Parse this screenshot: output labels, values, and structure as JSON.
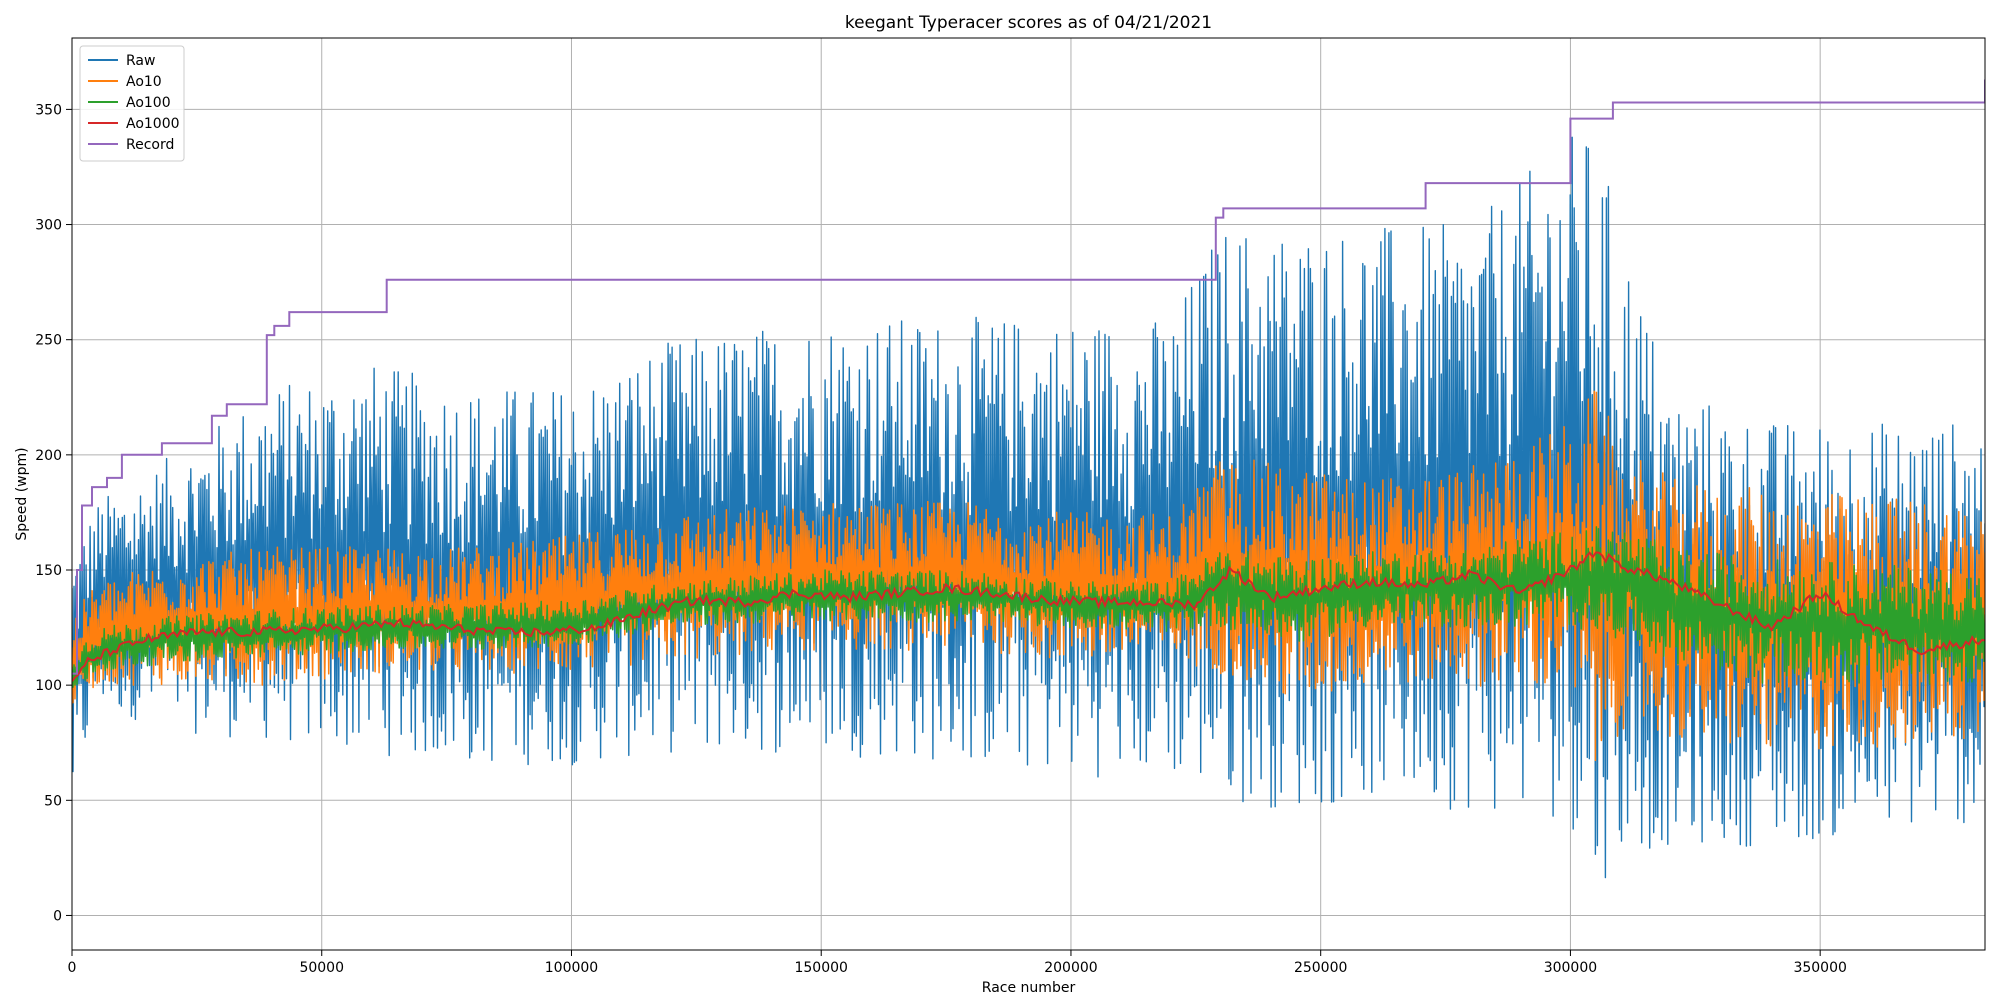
{
  "chart_data": {
    "type": "line",
    "title": "keegant Typeracer scores as of 04/21/2021",
    "xlabel": "Race number",
    "ylabel": "Speed (wpm)",
    "xlim": [
      0,
      383000
    ],
    "ylim": [
      -15,
      381
    ],
    "x_ticks": [
      0,
      50000,
      100000,
      150000,
      200000,
      250000,
      300000,
      350000
    ],
    "x_tick_labels": [
      "0",
      "50000",
      "100000",
      "150000",
      "200000",
      "250000",
      "300000",
      "350000"
    ],
    "y_ticks": [
      0,
      50,
      100,
      150,
      200,
      250,
      300,
      350
    ],
    "y_tick_labels": [
      "0",
      "50",
      "100",
      "150",
      "200",
      "250",
      "300",
      "350"
    ],
    "grid": true,
    "legend_position": "upper-left",
    "series": [
      {
        "name": "Raw",
        "color": "#1f77b4",
        "style": "noisy band",
        "x": [
          0,
          5000,
          20000,
          40000,
          60000,
          80000,
          100000,
          120000,
          150000,
          180000,
          200000,
          220000,
          230000,
          245000,
          260000,
          280000,
          300000,
          305000,
          310000,
          320000,
          340000,
          383000
        ],
        "lower": [
          45,
          90,
          80,
          75,
          70,
          65,
          65,
          70,
          70,
          65,
          60,
          60,
          50,
          45,
          50,
          45,
          40,
          10,
          25,
          30,
          30,
          40
        ],
        "upper": [
          160,
          180,
          200,
          230,
          240,
          230,
          230,
          250,
          260,
          260,
          260,
          260,
          300,
          300,
          300,
          300,
          340,
          340,
          300,
          230,
          215,
          215
        ]
      },
      {
        "name": "Ao10",
        "color": "#ff7f0e",
        "style": "noisy band",
        "x": [
          0,
          5000,
          20000,
          40000,
          60000,
          80000,
          100000,
          120000,
          150000,
          180000,
          200000,
          220000,
          230000,
          245000,
          260000,
          280000,
          300000,
          305000,
          310000,
          320000,
          340000,
          383000
        ],
        "lower": [
          90,
          100,
          100,
          100,
          105,
          105,
          105,
          110,
          115,
          115,
          110,
          110,
          105,
          90,
          100,
          100,
          95,
          60,
          80,
          75,
          70,
          75
        ],
        "upper": [
          130,
          145,
          155,
          160,
          160,
          160,
          165,
          175,
          180,
          180,
          175,
          175,
          200,
          195,
          190,
          195,
          215,
          230,
          205,
          190,
          185,
          180
        ]
      },
      {
        "name": "Ao100",
        "color": "#2ca02c",
        "style": "noisy band",
        "x": [
          0,
          5000,
          20000,
          40000,
          60000,
          80000,
          100000,
          120000,
          150000,
          180000,
          200000,
          220000,
          230000,
          245000,
          260000,
          280000,
          300000,
          310000,
          320000,
          340000,
          383000
        ],
        "lower": [
          95,
          105,
          110,
          112,
          115,
          115,
          117,
          125,
          128,
          127,
          125,
          123,
          125,
          118,
          125,
          125,
          125,
          120,
          110,
          100,
          100
        ],
        "upper": [
          115,
          125,
          130,
          133,
          135,
          135,
          137,
          145,
          150,
          150,
          145,
          145,
          160,
          155,
          158,
          160,
          168,
          170,
          160,
          155,
          150
        ]
      },
      {
        "name": "Ao1000",
        "color": "#d62728",
        "x": [
          0,
          3000,
          8000,
          15000,
          25000,
          35000,
          45000,
          55000,
          65000,
          75000,
          85000,
          95000,
          105000,
          115000,
          125000,
          135000,
          145000,
          155000,
          165000,
          175000,
          185000,
          195000,
          205000,
          215000,
          225000,
          232000,
          240000,
          250000,
          260000,
          270000,
          280000,
          290000,
          300000,
          305000,
          310000,
          320000,
          330000,
          340000,
          350000,
          360000,
          370000,
          383000
        ],
        "y": [
          100,
          110,
          115,
          120,
          123,
          123,
          124,
          125,
          127,
          125,
          123,
          123,
          125,
          132,
          137,
          136,
          140,
          138,
          140,
          142,
          140,
          137,
          136,
          136,
          135,
          150,
          138,
          142,
          145,
          143,
          148,
          140,
          150,
          158,
          152,
          145,
          135,
          125,
          140,
          125,
          115,
          120
        ]
      },
      {
        "name": "Record",
        "color": "#9467bd",
        "style": "step",
        "x": [
          0,
          1000,
          2000,
          4000,
          7000,
          10000,
          18000,
          28000,
          31000,
          39000,
          40500,
          43500,
          63000,
          229000,
          230500,
          271000,
          300000,
          308500,
          383000
        ],
        "y": [
          105,
          150,
          178,
          186,
          190,
          200,
          205,
          217,
          222,
          252,
          256,
          262,
          276,
          303,
          307,
          318,
          346,
          353,
          363
        ]
      }
    ]
  }
}
